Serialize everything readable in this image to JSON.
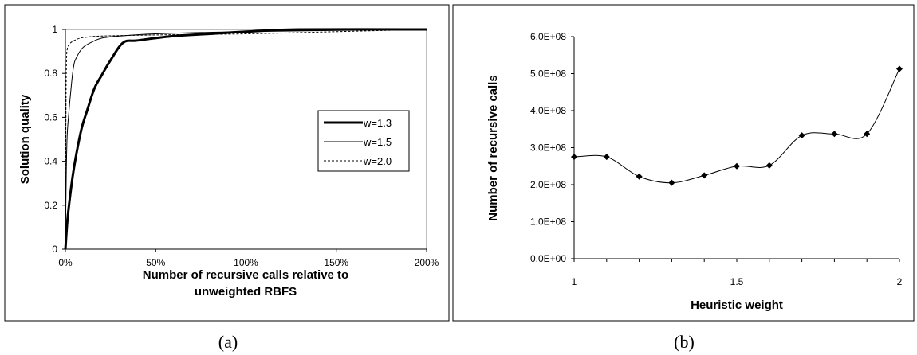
{
  "chart_data": [
    {
      "type": "line",
      "panel_caption": "(a)",
      "xlabel_lines": [
        "Number of recursive calls relative to",
        "unweighted RBFS"
      ],
      "ylabel": "Solution quality",
      "xlim": [
        0,
        200
      ],
      "ylim": [
        0,
        1
      ],
      "x_ticks": [
        "0%",
        "50%",
        "100%",
        "150%",
        "200%"
      ],
      "x_tick_values": [
        0,
        50,
        100,
        150,
        200
      ],
      "y_ticks": [
        "0",
        "0.2",
        "0.4",
        "0.6",
        "0.8",
        "1"
      ],
      "y_tick_values": [
        0,
        0.2,
        0.4,
        0.6,
        0.8,
        1
      ],
      "grid": false,
      "legend_position": "right",
      "series": [
        {
          "name": "w=1.3",
          "style": "thick",
          "x": [
            0,
            1,
            2,
            4,
            6,
            9,
            12,
            16,
            20,
            25,
            32,
            40,
            60,
            80,
            100,
            130,
            200
          ],
          "y": [
            0,
            0.12,
            0.2,
            0.33,
            0.43,
            0.55,
            0.63,
            0.73,
            0.79,
            0.86,
            0.94,
            0.95,
            0.97,
            0.98,
            0.99,
            1.0,
            1.0
          ]
        },
        {
          "name": "w=1.5",
          "style": "thin",
          "x": [
            0,
            0.5,
            1,
            2,
            3,
            4,
            5,
            6,
            8,
            10,
            14,
            20,
            30,
            50,
            100,
            200
          ],
          "y": [
            0,
            0.35,
            0.52,
            0.63,
            0.72,
            0.8,
            0.85,
            0.87,
            0.9,
            0.92,
            0.94,
            0.96,
            0.97,
            0.98,
            0.99,
            1.0
          ]
        },
        {
          "name": "w=2.0",
          "style": "dashed",
          "x": [
            0,
            0.3,
            0.6,
            1,
            2,
            3,
            5,
            8,
            12,
            20,
            50,
            100,
            150,
            200
          ],
          "y": [
            0,
            0.6,
            0.85,
            0.91,
            0.93,
            0.94,
            0.95,
            0.96,
            0.965,
            0.97,
            0.975,
            0.98,
            0.99,
            1.0
          ]
        }
      ]
    },
    {
      "type": "line",
      "panel_caption": "(b)",
      "xlabel": "Heuristic weight",
      "ylabel": "Number of recursive calls",
      "xlim": [
        1,
        2
      ],
      "ylim": [
        0,
        600000000
      ],
      "x_ticks": [
        "1",
        "1.5",
        "2"
      ],
      "x_tick_values": [
        1,
        1.5,
        2
      ],
      "y_ticks": [
        "0.0E+00",
        "1.0E+08",
        "2.0E+08",
        "3.0E+08",
        "4.0E+08",
        "5.0E+08",
        "6.0E+08"
      ],
      "y_tick_values": [
        0,
        100000000,
        200000000,
        300000000,
        400000000,
        500000000,
        600000000
      ],
      "grid": false,
      "series": [
        {
          "x": [
            1.0,
            1.1,
            1.2,
            1.3,
            1.4,
            1.5,
            1.6,
            1.7,
            1.8,
            1.9,
            2.0
          ],
          "y": [
            275000000,
            275000000,
            222000000,
            205000000,
            225000000,
            250000000,
            252000000,
            333000000,
            337000000,
            337000000,
            513000000
          ]
        }
      ]
    }
  ]
}
